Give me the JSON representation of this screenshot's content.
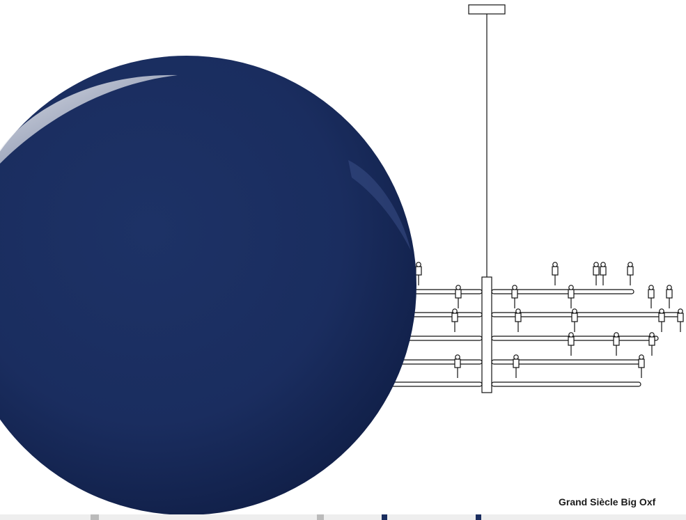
{
  "product": {
    "caption": "Grand Siècle Big Oxf"
  },
  "swatch": {
    "color_name": "navy-blue",
    "color": "#1a2d5f",
    "highlight_color": "#f2f2f4",
    "outline_color": "#111111"
  },
  "icons": {
    "swatch": "lacquer-ball-icon",
    "drawing": "chandelier-drawing-icon"
  }
}
